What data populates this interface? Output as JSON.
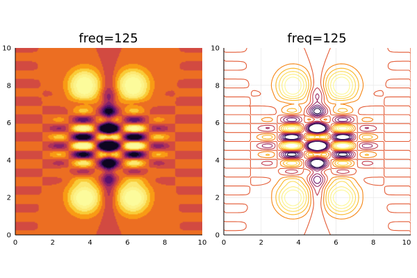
{
  "chart_data": [
    {
      "type": "heatmap",
      "style": "filled-contour",
      "title": "freq=125",
      "xlabel": "",
      "ylabel": "",
      "xlim": [
        0,
        10
      ],
      "ylim": [
        0,
        10
      ],
      "xticks": [
        "0",
        "2",
        "4",
        "6",
        "8",
        "10"
      ],
      "yticks": [
        "0",
        "2",
        "4",
        "6",
        "8",
        "10"
      ],
      "colormap": "inferno",
      "grid": false,
      "legend": "none"
    },
    {
      "type": "line",
      "style": "contour-lines",
      "title": "freq=125",
      "xlabel": "",
      "ylabel": "",
      "xlim": [
        0,
        10
      ],
      "ylim": [
        0,
        10
      ],
      "xticks": [
        "0",
        "2",
        "4",
        "6",
        "8",
        "10"
      ],
      "yticks": [
        "0",
        "2",
        "4",
        "6",
        "8",
        "10"
      ],
      "colormap": "inferno",
      "grid": true,
      "legend": "none"
    }
  ]
}
